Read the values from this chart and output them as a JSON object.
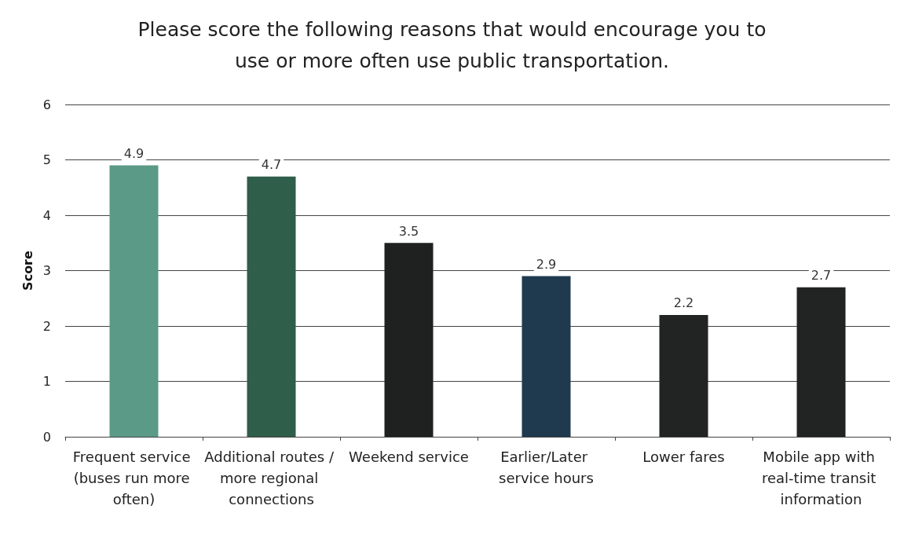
{
  "chart_data": {
    "type": "bar",
    "title": "Please score the following reasons that would encourage you to\nuse or more often use public transportation.",
    "ylabel": "Score",
    "categories": [
      "Frequent service (buses run more often)",
      "Additional routes / more regional connections",
      "Weekend service",
      "Earlier/Later service hours",
      "Lower fares",
      "Mobile app with real-time transit information"
    ],
    "values": [
      4.9,
      4.7,
      3.5,
      2.9,
      2.2,
      2.7
    ],
    "colors": [
      "#5a9a86",
      "#2f5e4b",
      "#1f2121",
      "#1f3a4e",
      "#222323",
      "#222323"
    ],
    "ylim": [
      0,
      6
    ],
    "yticks": [
      0,
      1,
      2,
      3,
      4,
      5,
      6
    ],
    "grid": "y",
    "data_labels": true
  }
}
